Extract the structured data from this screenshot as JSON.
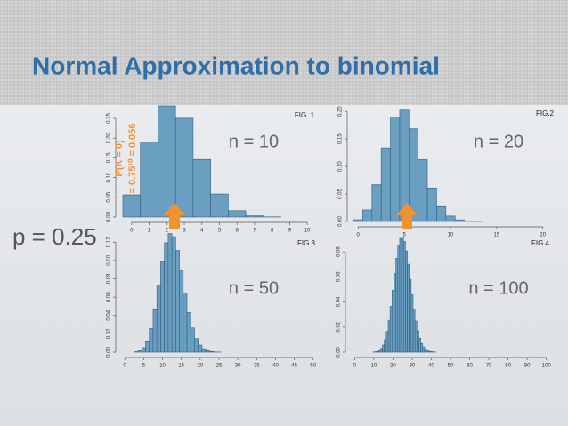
{
  "title": "Normal Approximation to binomial",
  "parameter": "p = 0.25",
  "annotation": [
    "P(K = 0)",
    "= 0.75¹⁰ = 0.056"
  ],
  "chart_data": [
    {
      "type": "bar",
      "figure_label": "FIG. 1",
      "annotation": "n = 10",
      "color": "#6b9fc2",
      "x": [
        0,
        1,
        2,
        3,
        4,
        5,
        6,
        7,
        8,
        9,
        10
      ],
      "values": [
        0.0563,
        0.1877,
        0.2816,
        0.2503,
        0.146,
        0.0584,
        0.0162,
        0.0031,
        0.0004,
        0,
        0
      ],
      "xlim": [
        -0.6,
        10.6
      ],
      "ylim": [
        0,
        0.28
      ],
      "xticks": [
        0,
        1,
        2,
        3,
        4,
        5,
        6,
        7,
        8,
        9,
        10
      ],
      "yticks": [
        {
          "value": 0,
          "label": "0.00"
        },
        {
          "value": 0.05,
          "label": "0.05"
        },
        {
          "value": 0.1,
          "label": "0.10"
        },
        {
          "value": 0.15,
          "label": "0.15"
        },
        {
          "value": 0.2,
          "label": "0.20"
        },
        {
          "value": 0.25,
          "label": "0.25"
        }
      ]
    },
    {
      "type": "bar",
      "figure_label": "FIG.2",
      "annotation": "n = 20",
      "color": "#6b9fc2",
      "x": [
        0,
        1,
        2,
        3,
        4,
        5,
        6,
        7,
        8,
        9,
        10,
        11,
        12,
        13
      ],
      "values": [
        0.0032,
        0.0211,
        0.0669,
        0.1339,
        0.1897,
        0.2023,
        0.1686,
        0.1124,
        0.0609,
        0.0271,
        0.0099,
        0.003,
        0.0008,
        0.0002
      ],
      "xlim": [
        -0.6,
        20.6
      ],
      "ylim": [
        0,
        0.21
      ],
      "xticks": [
        0,
        5,
        10,
        15,
        20
      ],
      "yticks": [
        {
          "value": 0,
          "label": "0.00"
        },
        {
          "value": 0.05,
          "label": "0.05"
        },
        {
          "value": 0.1,
          "label": "0.10"
        },
        {
          "value": 0.15,
          "label": "0.15"
        },
        {
          "value": 0.2,
          "label": "0.20"
        }
      ]
    },
    {
      "type": "bar",
      "figure_label": "FIG.3",
      "annotation": "n = 50",
      "color": "#6b9fc2",
      "x": [
        3,
        4,
        5,
        6,
        7,
        8,
        9,
        10,
        11,
        12,
        13,
        14,
        15,
        16,
        17,
        18,
        19,
        20,
        21,
        22,
        23,
        24,
        25
      ],
      "values": [
        0.0004,
        0.0016,
        0.0049,
        0.0123,
        0.0259,
        0.0463,
        0.0721,
        0.0985,
        0.1194,
        0.1294,
        0.1261,
        0.111,
        0.0888,
        0.0648,
        0.0432,
        0.0264,
        0.0148,
        0.0077,
        0.0037,
        0.0016,
        0.0007,
        0.0002,
        0.0001
      ],
      "xlim": [
        -1,
        51
      ],
      "ylim": [
        0,
        0.13
      ],
      "xticks": [
        0,
        5,
        10,
        15,
        20,
        25,
        30,
        35,
        40,
        45,
        50
      ],
      "yticks": [
        {
          "value": 0,
          "label": "0.00"
        },
        {
          "value": 0.02,
          "label": "0.02"
        },
        {
          "value": 0.04,
          "label": "0.04"
        },
        {
          "value": 0.06,
          "label": "0.06"
        },
        {
          "value": 0.08,
          "label": "0.08"
        },
        {
          "value": 0.1,
          "label": "0.10"
        },
        {
          "value": 0.12,
          "label": "0.12"
        }
      ]
    },
    {
      "type": "bar",
      "figure_label": "FIG.4",
      "annotation": "n = 100",
      "color": "#6b9fc2",
      "x": [
        10,
        11,
        12,
        13,
        14,
        15,
        16,
        17,
        18,
        19,
        20,
        21,
        22,
        23,
        24,
        25,
        26,
        27,
        28,
        29,
        30,
        31,
        32,
        33,
        34,
        35,
        36,
        37,
        38,
        39,
        40,
        41,
        42
      ],
      "values": [
        0.0001,
        0.0003,
        0.0006,
        0.0014,
        0.003,
        0.0057,
        0.01,
        0.0165,
        0.0254,
        0.0365,
        0.0493,
        0.0626,
        0.0749,
        0.0847,
        0.0906,
        0.0918,
        0.0883,
        0.0807,
        0.0701,
        0.058,
        0.0458,
        0.0344,
        0.0248,
        0.017,
        0.0112,
        0.007,
        0.0042,
        0.0024,
        0.0013,
        0.0007,
        0.0004,
        0.0002,
        0.0001
      ],
      "xlim": [
        -2,
        102
      ],
      "ylim": [
        0,
        0.095
      ],
      "xticks": [
        0,
        10,
        20,
        30,
        40,
        50,
        60,
        70,
        80,
        90,
        100
      ],
      "yticks": [
        {
          "value": 0,
          "label": "0.00"
        },
        {
          "value": 0.02,
          "label": "0.02"
        },
        {
          "value": 0.04,
          "label": "0.04"
        },
        {
          "value": 0.06,
          "label": "0.06"
        },
        {
          "value": 0.08,
          "label": "0.08"
        }
      ]
    }
  ]
}
